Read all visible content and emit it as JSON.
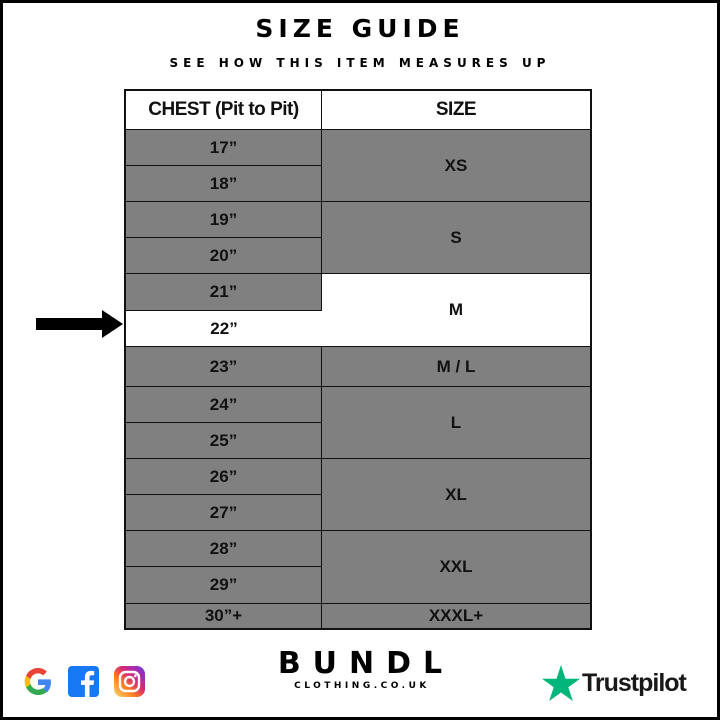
{
  "header": {
    "title": "SIZE GUIDE",
    "subtitle": "SEE HOW THIS ITEM MEASURES UP"
  },
  "table": {
    "columns": [
      "CHEST (Pit to Pit)",
      "SIZE"
    ],
    "chest": [
      "17”",
      "18”",
      "19”",
      "20”",
      "21”",
      "22”",
      "23”",
      "24”",
      "25”",
      "26”",
      "27”",
      "28”",
      "29”",
      "30”+"
    ],
    "sizes": [
      "XS",
      "S",
      "M",
      "M / L",
      "L",
      "XL",
      "XXL",
      "XXXL+"
    ],
    "highlighted_size": "M",
    "highlighted_chest": "22”",
    "colors": {
      "cell": "#808080",
      "highlight": "#ffffff"
    }
  },
  "footer": {
    "brand": "BUNDL",
    "site": "CLOTHING.CO.UK",
    "social_icons": [
      "google-icon",
      "facebook-icon",
      "instagram-icon"
    ],
    "review": "Trustpilot",
    "review_color": "#00b67a"
  }
}
